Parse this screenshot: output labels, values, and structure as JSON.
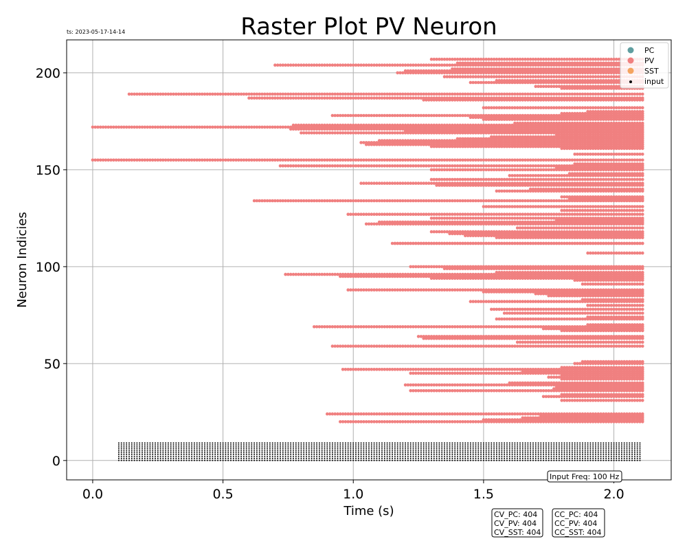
{
  "timestamp": "ts: 2023-05-17-14-14",
  "input_freq_label": "Input Freq: 100 Hz",
  "cv_box": [
    "CV_PC: 404",
    "CV_PV: 404",
    "CV_SST: 404"
  ],
  "cc_box": [
    "CC_PC: 404",
    "CC_PV: 404",
    "CC_SST: 404"
  ],
  "chart_data": {
    "type": "scatter",
    "title": "Raster Plot PV Neuron",
    "xlabel": "Time (s)",
    "ylabel": "Neuron Indicies",
    "xlim": [
      -0.1,
      2.22
    ],
    "ylim": [
      -10,
      217
    ],
    "xticks": [
      0.0,
      0.5,
      1.0,
      1.5,
      2.0
    ],
    "xtick_labels": [
      "0.0",
      "0.5",
      "1.0",
      "1.5",
      "2.0"
    ],
    "yticks": [
      0,
      50,
      100,
      150,
      200
    ],
    "ytick_labels": [
      "0",
      "50",
      "100",
      "150",
      "200"
    ],
    "grid": true,
    "legend_position": "top-right",
    "legend": [
      {
        "name": "PC",
        "color": "#5f9ea0"
      },
      {
        "name": "PV",
        "color": "#f08080"
      },
      {
        "name": "SST",
        "color": "#f4a460"
      },
      {
        "name": "input",
        "color": "#000000"
      }
    ],
    "input_series": {
      "name": "input",
      "color": "#000000",
      "neuron_range": [
        0,
        9
      ],
      "time_range": [
        0.1,
        2.1
      ],
      "step": 0.01
    },
    "pv_series": {
      "name": "PV",
      "color": "#f08080",
      "spike_step": 0.01,
      "spike_end": 2.11,
      "neurons": [
        {
          "index": 20,
          "start": 0.95
        },
        {
          "index": 21,
          "start": 1.5
        },
        {
          "index": 22,
          "start": 1.65
        },
        {
          "index": 23,
          "start": 1.72
        },
        {
          "index": 24,
          "start": 0.9
        },
        {
          "index": 31,
          "start": 1.8
        },
        {
          "index": 33,
          "start": 1.73
        },
        {
          "index": 34,
          "start": 1.8
        },
        {
          "index": 36,
          "start": 1.22
        },
        {
          "index": 37,
          "start": 1.77
        },
        {
          "index": 38,
          "start": 1.78
        },
        {
          "index": 39,
          "start": 1.2
        },
        {
          "index": 40,
          "start": 1.6
        },
        {
          "index": 42,
          "start": 1.8
        },
        {
          "index": 43,
          "start": 1.75
        },
        {
          "index": 44,
          "start": 1.8
        },
        {
          "index": 45,
          "start": 1.22
        },
        {
          "index": 46,
          "start": 1.65
        },
        {
          "index": 47,
          "start": 0.96
        },
        {
          "index": 48,
          "start": 1.8
        },
        {
          "index": 50,
          "start": 1.85
        },
        {
          "index": 51,
          "start": 1.88
        },
        {
          "index": 59,
          "start": 0.92
        },
        {
          "index": 61,
          "start": 1.63
        },
        {
          "index": 63,
          "start": 1.27
        },
        {
          "index": 64,
          "start": 1.25
        },
        {
          "index": 67,
          "start": 1.8
        },
        {
          "index": 68,
          "start": 1.73
        },
        {
          "index": 69,
          "start": 0.85
        },
        {
          "index": 70,
          "start": 1.9
        },
        {
          "index": 73,
          "start": 1.55
        },
        {
          "index": 74,
          "start": 1.9
        },
        {
          "index": 76,
          "start": 1.58
        },
        {
          "index": 78,
          "start": 1.53
        },
        {
          "index": 80,
          "start": 1.9
        },
        {
          "index": 82,
          "start": 1.45
        },
        {
          "index": 83,
          "start": 1.88
        },
        {
          "index": 85,
          "start": 1.75
        },
        {
          "index": 86,
          "start": 1.7
        },
        {
          "index": 87,
          "start": 1.5
        },
        {
          "index": 88,
          "start": 0.98
        },
        {
          "index": 91,
          "start": 1.88
        },
        {
          "index": 93,
          "start": 1.85
        },
        {
          "index": 94,
          "start": 1.3
        },
        {
          "index": 95,
          "start": 0.95
        },
        {
          "index": 96,
          "start": 0.74
        },
        {
          "index": 97,
          "start": 1.55
        },
        {
          "index": 99,
          "start": 1.35
        },
        {
          "index": 100,
          "start": 1.22
        },
        {
          "index": 107,
          "start": 1.9
        },
        {
          "index": 112,
          "start": 1.16
        },
        {
          "index": 115,
          "start": 1.55
        },
        {
          "index": 116,
          "start": 1.43
        },
        {
          "index": 117,
          "start": 1.37
        },
        {
          "index": 118,
          "start": 1.3
        },
        {
          "index": 112,
          "start": 1.15
        },
        {
          "index": 120,
          "start": 1.63
        },
        {
          "index": 122,
          "start": 1.05
        },
        {
          "index": 123,
          "start": 1.1
        },
        {
          "index": 124,
          "start": 1.78
        },
        {
          "index": 125,
          "start": 1.3
        },
        {
          "index": 127,
          "start": 0.98
        },
        {
          "index": 129,
          "start": 1.8
        },
        {
          "index": 131,
          "start": 1.5
        },
        {
          "index": 134,
          "start": 0.62
        },
        {
          "index": 135,
          "start": 1.83
        },
        {
          "index": 136,
          "start": 1.8
        },
        {
          "index": 139,
          "start": 1.55
        },
        {
          "index": 140,
          "start": 1.68
        },
        {
          "index": 142,
          "start": 1.32
        },
        {
          "index": 143,
          "start": 1.03
        },
        {
          "index": 145,
          "start": 1.3
        },
        {
          "index": 147,
          "start": 1.6
        },
        {
          "index": 148,
          "start": 1.83
        },
        {
          "index": 150,
          "start": 1.3
        },
        {
          "index": 151,
          "start": 1.78
        },
        {
          "index": 152,
          "start": 0.72
        },
        {
          "index": 153,
          "start": 1.85
        },
        {
          "index": 155,
          "start": 0.0
        },
        {
          "index": 158,
          "start": 1.85
        },
        {
          "index": 161,
          "start": 1.8
        },
        {
          "index": 162,
          "start": 1.3
        },
        {
          "index": 163,
          "start": 1.05
        },
        {
          "index": 164,
          "start": 1.03
        },
        {
          "index": 165,
          "start": 1.1
        },
        {
          "index": 166,
          "start": 1.4
        },
        {
          "index": 167,
          "start": 1.53
        },
        {
          "index": 168,
          "start": 1.78
        },
        {
          "index": 169,
          "start": 0.8
        },
        {
          "index": 170,
          "start": 1.2
        },
        {
          "index": 171,
          "start": 0.76
        },
        {
          "index": 172,
          "start": 0.0
        },
        {
          "index": 173,
          "start": 0.77
        },
        {
          "index": 174,
          "start": 1.62
        },
        {
          "index": 176,
          "start": 1.5
        },
        {
          "index": 177,
          "start": 1.45
        },
        {
          "index": 178,
          "start": 0.92
        },
        {
          "index": 179,
          "start": 1.8
        },
        {
          "index": 180,
          "start": 1.9
        },
        {
          "index": 182,
          "start": 1.5
        },
        {
          "index": 186,
          "start": 1.27
        },
        {
          "index": 187,
          "start": 0.6
        },
        {
          "index": 189,
          "start": 0.14
        },
        {
          "index": 192,
          "start": 1.8
        },
        {
          "index": 193,
          "start": 1.7
        },
        {
          "index": 195,
          "start": 1.45
        },
        {
          "index": 196,
          "start": 1.55
        },
        {
          "index": 198,
          "start": 1.35
        },
        {
          "index": 200,
          "start": 1.17
        },
        {
          "index": 201,
          "start": 1.2
        },
        {
          "index": 202,
          "start": 1.38
        },
        {
          "index": 204,
          "start": 0.7
        },
        {
          "index": 205,
          "start": 1.4
        },
        {
          "index": 207,
          "start": 1.3
        }
      ]
    }
  }
}
